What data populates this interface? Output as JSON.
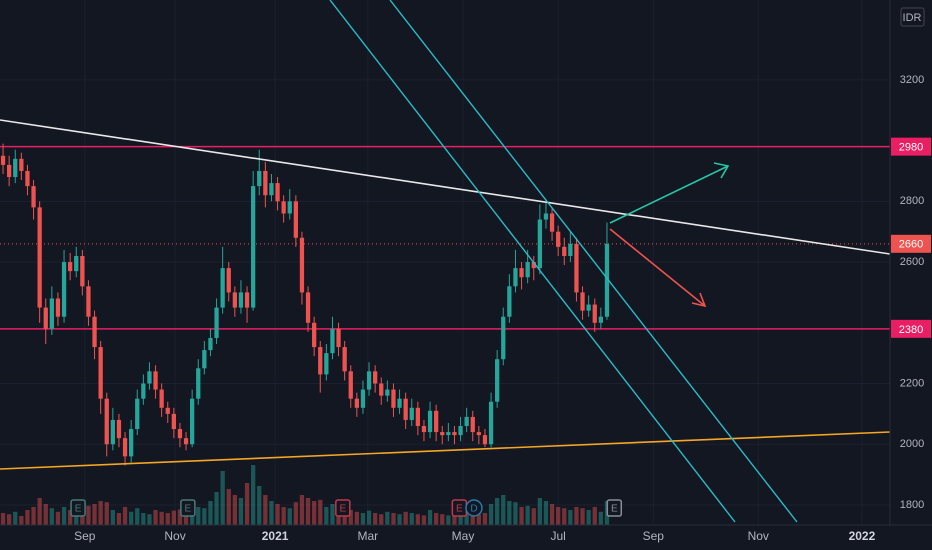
{
  "chart_data": {
    "type": "candlestick",
    "currency": "IDR",
    "up_color": "#26a69a",
    "down_color": "#ef5350",
    "grid": true,
    "ylim": [
      1734,
      3463
    ],
    "yticks": [
      1800,
      2000,
      2200,
      2600,
      2800,
      3200
    ],
    "xlim": [
      -0.5,
      145.4
    ],
    "xticks": [
      {
        "value": 13.4,
        "label": "Sep"
      },
      {
        "value": 28.2,
        "label": "Nov"
      },
      {
        "value": 44.6,
        "label": "2021"
      },
      {
        "value": 59.8,
        "label": "Mar"
      },
      {
        "value": 75.4,
        "label": "May"
      },
      {
        "value": 91.0,
        "label": "Jul"
      },
      {
        "value": 106.6,
        "label": "Sep"
      },
      {
        "value": 123.8,
        "label": "Nov"
      },
      {
        "value": 140.8,
        "label": "2022"
      }
    ],
    "levels": [
      {
        "value": 2980,
        "color": "#e91e63",
        "style": "solid"
      },
      {
        "value": 2660,
        "color": "#ef5350",
        "style": "dotted"
      },
      {
        "value": 2380,
        "color": "#e91e63",
        "style": "solid"
      }
    ],
    "candles": [
      [
        2950,
        2990,
        2890,
        2920
      ],
      [
        2920,
        2950,
        2850,
        2880
      ],
      [
        2880,
        2970,
        2860,
        2940
      ],
      [
        2940,
        2960,
        2870,
        2900
      ],
      [
        2900,
        2920,
        2820,
        2850
      ],
      [
        2850,
        2870,
        2740,
        2780
      ],
      [
        2780,
        2800,
        2400,
        2450
      ],
      [
        2450,
        2480,
        2330,
        2380
      ],
      [
        2380,
        2520,
        2360,
        2480
      ],
      [
        2480,
        2500,
        2390,
        2420
      ],
      [
        2420,
        2640,
        2400,
        2600
      ],
      [
        2600,
        2630,
        2540,
        2570
      ],
      [
        2570,
        2650,
        2550,
        2620
      ],
      [
        2620,
        2640,
        2490,
        2520
      ],
      [
        2520,
        2540,
        2390,
        2420
      ],
      [
        2420,
        2440,
        2280,
        2320
      ],
      [
        2320,
        2340,
        2100,
        2150
      ],
      [
        2150,
        2170,
        1960,
        2000
      ],
      [
        2000,
        2120,
        1980,
        2080
      ],
      [
        2080,
        2100,
        1990,
        2020
      ],
      [
        2020,
        2040,
        1930,
        1960
      ],
      [
        1960,
        2080,
        1940,
        2050
      ],
      [
        2050,
        2180,
        2030,
        2150
      ],
      [
        2150,
        2230,
        2130,
        2200
      ],
      [
        2200,
        2270,
        2180,
        2240
      ],
      [
        2240,
        2260,
        2150,
        2180
      ],
      [
        2180,
        2200,
        2090,
        2120
      ],
      [
        2120,
        2140,
        2070,
        2100
      ],
      [
        2100,
        2120,
        2020,
        2050
      ],
      [
        2050,
        2070,
        1990,
        2020
      ],
      [
        2020,
        2040,
        1980,
        2000
      ],
      [
        2000,
        2180,
        1990,
        2150
      ],
      [
        2150,
        2280,
        2130,
        2250
      ],
      [
        2250,
        2340,
        2230,
        2310
      ],
      [
        2310,
        2380,
        2290,
        2350
      ],
      [
        2350,
        2480,
        2330,
        2450
      ],
      [
        2450,
        2650,
        2430,
        2580
      ],
      [
        2580,
        2600,
        2470,
        2500
      ],
      [
        2500,
        2520,
        2420,
        2450
      ],
      [
        2450,
        2540,
        2430,
        2500
      ],
      [
        2500,
        2520,
        2400,
        2450
      ],
      [
        2450,
        2900,
        2440,
        2850
      ],
      [
        2850,
        2970,
        2820,
        2900
      ],
      [
        2900,
        2930,
        2780,
        2820
      ],
      [
        2820,
        2890,
        2800,
        2860
      ],
      [
        2860,
        2880,
        2770,
        2800
      ],
      [
        2800,
        2820,
        2730,
        2760
      ],
      [
        2760,
        2840,
        2740,
        2800
      ],
      [
        2800,
        2820,
        2650,
        2680
      ],
      [
        2680,
        2700,
        2460,
        2500
      ],
      [
        2500,
        2520,
        2370,
        2400
      ],
      [
        2400,
        2420,
        2290,
        2320
      ],
      [
        2320,
        2340,
        2170,
        2230
      ],
      [
        2230,
        2330,
        2210,
        2300
      ],
      [
        2300,
        2420,
        2280,
        2380
      ],
      [
        2380,
        2400,
        2290,
        2320
      ],
      [
        2320,
        2340,
        2210,
        2240
      ],
      [
        2240,
        2260,
        2120,
        2150
      ],
      [
        2150,
        2170,
        2090,
        2120
      ],
      [
        2120,
        2210,
        2100,
        2180
      ],
      [
        2180,
        2270,
        2160,
        2240
      ],
      [
        2240,
        2260,
        2170,
        2200
      ],
      [
        2200,
        2220,
        2130,
        2160
      ],
      [
        2160,
        2210,
        2140,
        2180
      ],
      [
        2180,
        2200,
        2090,
        2120
      ],
      [
        2120,
        2180,
        2100,
        2150
      ],
      [
        2150,
        2170,
        2050,
        2080
      ],
      [
        2080,
        2150,
        2060,
        2120
      ],
      [
        2120,
        2140,
        2030,
        2060
      ],
      [
        2060,
        2080,
        2010,
        2040
      ],
      [
        2040,
        2140,
        2020,
        2110
      ],
      [
        2110,
        2130,
        2010,
        2040
      ],
      [
        2040,
        2060,
        2000,
        2030
      ],
      [
        2030,
        2070,
        2010,
        2040
      ],
      [
        2040,
        2060,
        2000,
        2030
      ],
      [
        2030,
        2090,
        2010,
        2060
      ],
      [
        2060,
        2120,
        2040,
        2090
      ],
      [
        2090,
        2110,
        2010,
        2040
      ],
      [
        2040,
        2060,
        2000,
        2030
      ],
      [
        2030,
        2050,
        1990,
        2000
      ],
      [
        2000,
        2170,
        1990,
        2140
      ],
      [
        2140,
        2310,
        2120,
        2280
      ],
      [
        2280,
        2450,
        2260,
        2420
      ],
      [
        2420,
        2560,
        2400,
        2520
      ],
      [
        2520,
        2640,
        2500,
        2580
      ],
      [
        2580,
        2600,
        2510,
        2550
      ],
      [
        2550,
        2640,
        2530,
        2600
      ],
      [
        2600,
        2620,
        2540,
        2580
      ],
      [
        2580,
        2790,
        2560,
        2740
      ],
      [
        2740,
        2800,
        2710,
        2760
      ],
      [
        2760,
        2780,
        2670,
        2700
      ],
      [
        2700,
        2720,
        2620,
        2650
      ],
      [
        2650,
        2680,
        2590,
        2620
      ],
      [
        2620,
        2700,
        2600,
        2660
      ],
      [
        2660,
        2680,
        2470,
        2500
      ],
      [
        2500,
        2520,
        2410,
        2440
      ],
      [
        2440,
        2490,
        2420,
        2460
      ],
      [
        2460,
        2480,
        2370,
        2400
      ],
      [
        2400,
        2450,
        2380,
        2420
      ],
      [
        2420,
        2730,
        2410,
        2660
      ]
    ],
    "volume": [
      20,
      18,
      22,
      15,
      25,
      30,
      45,
      35,
      28,
      22,
      30,
      25,
      20,
      28,
      32,
      35,
      40,
      38,
      25,
      20,
      30,
      22,
      28,
      20,
      18,
      25,
      22,
      20,
      24,
      26,
      22,
      35,
      30,
      28,
      40,
      55,
      90,
      60,
      50,
      45,
      70,
      100,
      65,
      50,
      40,
      35,
      30,
      28,
      38,
      50,
      45,
      40,
      42,
      30,
      35,
      28,
      30,
      25,
      22,
      20,
      24,
      20,
      18,
      22,
      20,
      18,
      22,
      20,
      18,
      16,
      25,
      20,
      18,
      16,
      15,
      18,
      20,
      22,
      18,
      20,
      35,
      45,
      50,
      40,
      38,
      30,
      32,
      28,
      45,
      40,
      35,
      30,
      28,
      25,
      30,
      28,
      25,
      30,
      22,
      40
    ],
    "events": [
      {
        "x": 12.3,
        "label": "E",
        "color": "#4a7a78"
      },
      {
        "x": 30.3,
        "label": "E",
        "color": "#4a7a78"
      },
      {
        "x": 55.7,
        "label": "E",
        "color": "#c0394a"
      },
      {
        "x": 74.8,
        "label": "E",
        "color": "#c0394a"
      },
      {
        "x": 77.2,
        "label": "D",
        "color": "#2a7aa8"
      },
      {
        "x": 100.2,
        "label": "E",
        "color": "#8a8e98"
      }
    ]
  }
}
